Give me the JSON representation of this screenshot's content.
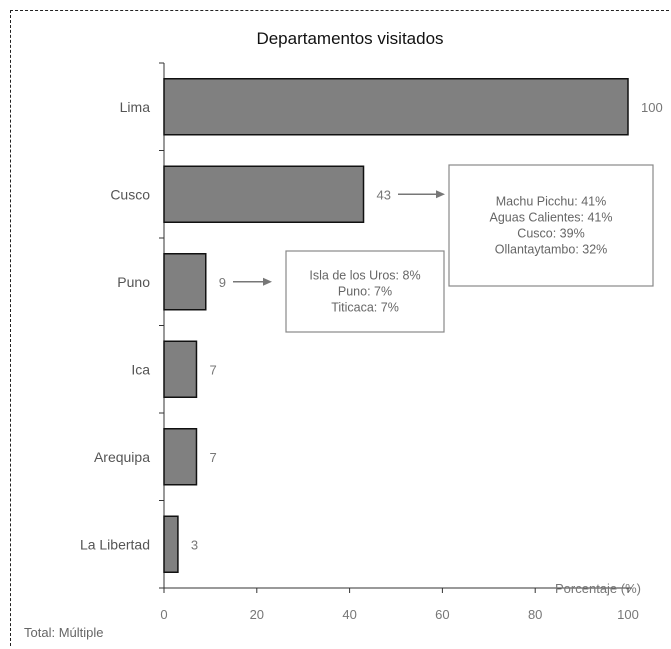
{
  "chart_data": {
    "type": "bar",
    "orientation": "horizontal",
    "title": "Departamentos visitados",
    "xlabel": "Porcentaje (%)",
    "categories": [
      "Lima",
      "Cusco",
      "Puno",
      "Ica",
      "Arequipa",
      "La Libertad"
    ],
    "values": [
      100,
      43,
      9,
      7,
      7,
      3
    ],
    "xlim": [
      0,
      100
    ],
    "xticks": [
      0,
      20,
      40,
      60,
      80,
      100
    ],
    "grid": false,
    "bar_color": "#808080",
    "annotations": [
      {
        "category": "Cusco",
        "lines": [
          "Machu Picchu: 41%",
          "Aguas Calientes: 41%",
          "Cusco: 39%",
          "Ollantaytambo: 32%"
        ]
      },
      {
        "category": "Puno",
        "lines": [
          "Isla de los Uros: 8%",
          "Puno: 7%",
          "Titicaca: 7%"
        ]
      }
    ]
  },
  "footer": {
    "label": "Total",
    "value": "Múltiple"
  }
}
